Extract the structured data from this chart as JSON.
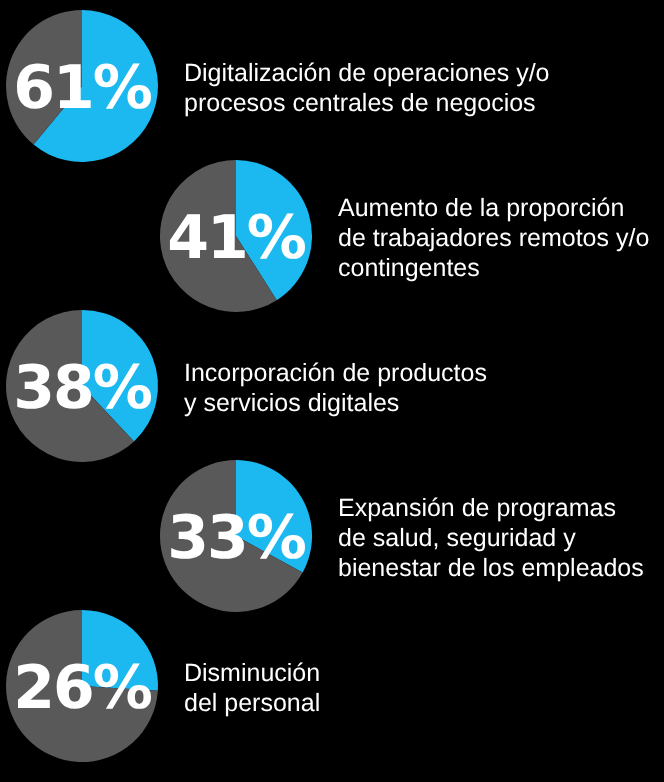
{
  "chart_data": [
    {
      "type": "pie",
      "title": "Digitalización de operaciones y/o\nprocesos centrales de negocios",
      "categories": [
        null,
        null
      ],
      "values": [
        61,
        39
      ],
      "colors": [
        "#1cb9f0",
        "#595959"
      ],
      "annotations": [
        "61%"
      ]
    },
    {
      "type": "pie",
      "title": "Aumento de la proporción\nde trabajadores remotos y/o\ncontingentes",
      "categories": [
        null,
        null
      ],
      "values": [
        41,
        59
      ],
      "colors": [
        "#1cb9f0",
        "#595959"
      ],
      "annotations": [
        "41%"
      ]
    },
    {
      "type": "pie",
      "title": "Incorporación de productos\ny servicios digitales",
      "categories": [
        null,
        null
      ],
      "values": [
        38,
        62
      ],
      "colors": [
        "#1cb9f0",
        "#595959"
      ],
      "annotations": [
        "38%"
      ]
    },
    {
      "type": "pie",
      "title": "Expansión de programas\nde salud, seguridad y\nbienestar de los empleados",
      "categories": [
        null,
        null
      ],
      "values": [
        33,
        67
      ],
      "colors": [
        "#1cb9f0",
        "#595959"
      ],
      "annotations": [
        "33%"
      ]
    },
    {
      "type": "pie",
      "title": "Disminución\ndel personal",
      "categories": [
        null,
        null
      ],
      "values": [
        26,
        74
      ],
      "colors": [
        "#1cb9f0",
        "#595959"
      ],
      "annotations": [
        "26%"
      ]
    }
  ]
}
